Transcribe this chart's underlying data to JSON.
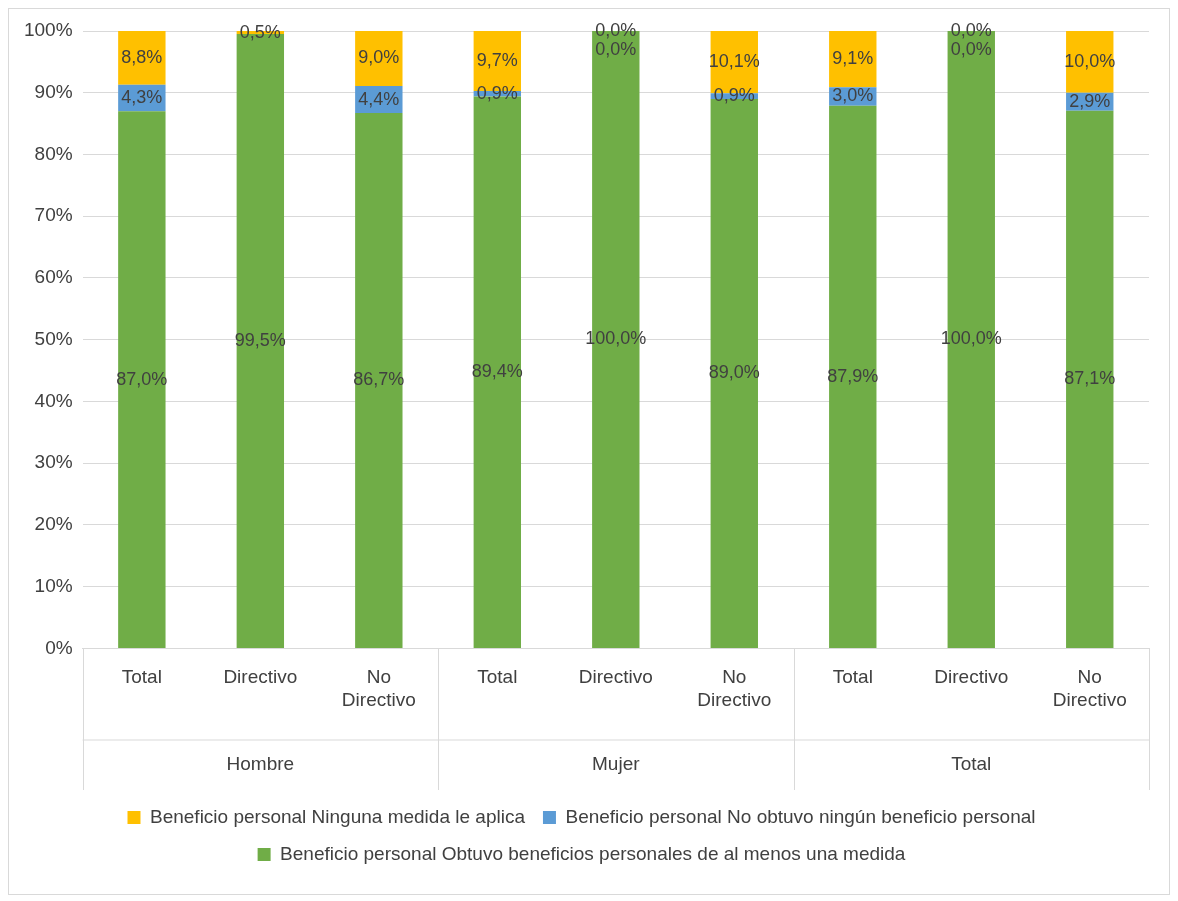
{
  "chart_data": {
    "type": "bar",
    "stacked": true,
    "categories": [
      "Total",
      "Directivo",
      "No Directivo",
      "Total",
      "Directivo",
      "No Directivo",
      "Total",
      "Directivo",
      "No Directivo"
    ],
    "annotations": [
      "Hombre",
      "Mujer",
      "Total"
    ],
    "series": [
      {
        "name": "Beneficio personal Obtuvo beneficios personales de al menos una medida",
        "color": "#70ad47",
        "values": [
          87.0,
          99.5,
          86.7,
          89.4,
          100.0,
          89.0,
          87.9,
          100.0,
          87.1
        ],
        "value_labels": [
          "87,0%",
          "99,5%",
          "86,7%",
          "89,4%",
          "100,0%",
          "89,0%",
          "87,9%",
          "100,0%",
          "87,1%"
        ]
      },
      {
        "name": "Beneficio personal No obtuvo ningún beneficio personal",
        "color": "#5b9bd5",
        "values": [
          4.3,
          0.0,
          4.4,
          0.9,
          0.0,
          0.9,
          3.0,
          0.0,
          2.9
        ],
        "value_labels": [
          "4,3%",
          null,
          "4,4%",
          "0,9%",
          "0,0%",
          "0,9%",
          "3,0%",
          "0,0%",
          "2,9%"
        ]
      },
      {
        "name": "Beneficio personal Ninguna medida le aplica",
        "color": "#ffc000",
        "values": [
          8.8,
          0.5,
          9.0,
          9.7,
          0.0,
          10.1,
          9.1,
          0.0,
          10.0
        ],
        "value_labels": [
          "8,8%",
          "0,5%",
          "9,0%",
          "9,7%",
          "0,0%",
          "10,1%",
          "9,1%",
          "0,0%",
          "10,0%"
        ]
      }
    ],
    "ylim": [
      0,
      100
    ],
    "yticks": [
      {
        "value": 0,
        "label": "0%"
      },
      {
        "value": 10,
        "label": "10%"
      },
      {
        "value": 20,
        "label": "20%"
      },
      {
        "value": 30,
        "label": "30%"
      },
      {
        "value": 40,
        "label": "40%"
      },
      {
        "value": 50,
        "label": "50%"
      },
      {
        "value": 60,
        "label": "60%"
      },
      {
        "value": 70,
        "label": "70%"
      },
      {
        "value": 80,
        "label": "80%"
      },
      {
        "value": 90,
        "label": "90%"
      },
      {
        "value": 100,
        "label": "100%"
      }
    ],
    "grid": "y",
    "legend": "bottom"
  }
}
